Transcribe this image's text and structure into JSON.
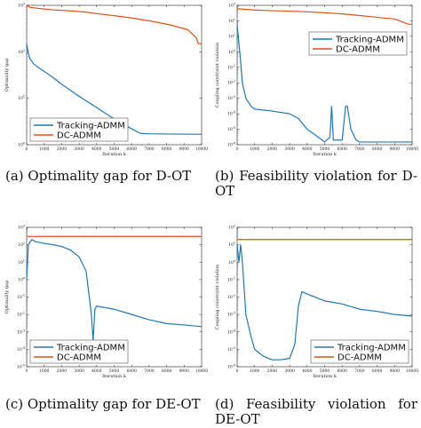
{
  "colors": {
    "tracking": "#1f77b4",
    "dc": "#d95319"
  },
  "figures": [
    {
      "caption": "(a) Optimality gap for D-OT"
    },
    {
      "caption": "(b) Feasibility violation for D-OT"
    },
    {
      "caption": "(c) Optimality gap for DE-OT"
    },
    {
      "caption": "(d) Feasibility violation for DE-OT"
    }
  ],
  "chart_data": [
    {
      "type": "line",
      "xlabel": "Iteration k",
      "ylabel": "Optimality gap",
      "xlim": [
        0,
        10000
      ],
      "xticks": [
        0,
        1000,
        2000,
        3000,
        4000,
        5000,
        6000,
        7000,
        8000,
        9000,
        10000
      ],
      "yscale": "log",
      "ylim": [
        1,
        1000
      ],
      "yticks": [
        "10^0",
        "10^1",
        "10^2",
        "10^3"
      ],
      "legend": "bottom-left",
      "series": [
        {
          "name": "Tracking-ADMM",
          "color": "#1f77b4",
          "x": [
            0,
            100,
            200,
            400,
            700,
            1000,
            1500,
            2000,
            3000,
            4000,
            5000,
            6000,
            6500,
            7000,
            8000,
            10000
          ],
          "y": [
            150,
            90,
            70,
            55,
            45,
            38,
            28,
            20,
            11,
            6.3,
            3.6,
            2.2,
            1.75,
            1.72,
            1.7,
            1.68
          ]
        },
        {
          "name": "DC-ADMM",
          "color": "#d95319",
          "x": [
            0,
            200,
            800,
            1500,
            2500,
            3300,
            4200,
            5300,
            6200,
            7200,
            8200,
            9200,
            9700,
            9800,
            10000
          ],
          "y": [
            1000,
            900,
            850,
            800,
            760,
            720,
            650,
            580,
            520,
            450,
            380,
            300,
            200,
            150,
            150
          ]
        }
      ]
    },
    {
      "type": "line",
      "xlabel": "Iteration k",
      "ylabel": "Coupling constraint violation",
      "xlim": [
        0,
        10000
      ],
      "xticks": [
        0,
        1000,
        2000,
        3000,
        4000,
        5000,
        6000,
        7000,
        8000,
        9000,
        10000
      ],
      "yscale": "log",
      "ylim": [
        1e-06,
        1000
      ],
      "yticks": [
        "10^-6",
        "10^-5",
        "10^-4",
        "10^-3",
        "10^-2",
        "10^-1",
        "10^0",
        "10^1",
        "10^2",
        "10^3"
      ],
      "legend": "top-right",
      "series": [
        {
          "name": "Tracking-ADMM",
          "color": "#1f77b4",
          "x": [
            0,
            150,
            300,
            500,
            800,
            1000,
            2000,
            3000,
            3500,
            4000,
            4500,
            5000,
            5300,
            5400,
            5500,
            6000,
            6200,
            6300,
            6500,
            6800,
            7000,
            10000
          ],
          "y": [
            50,
            1,
            0.01,
            0.001,
            0.0003,
            0.0002,
            0.00015,
            0.0001,
            5e-05,
            1e-05,
            4e-06,
            1.5e-06,
            3e-06,
            0.0003,
            2e-06,
            2e-06,
            0.0003,
            0.0003,
            1e-05,
            2e-06,
            1.5e-06,
            1.5e-06
          ]
        },
        {
          "name": "DC-ADMM",
          "color": "#d95319",
          "x": [
            0,
            1000,
            2000,
            3000,
            4000,
            5000,
            6000,
            7000,
            8000,
            9000,
            9800,
            10000
          ],
          "y": [
            600,
            500,
            450,
            420,
            380,
            330,
            280,
            220,
            170,
            130,
            60,
            60
          ]
        }
      ]
    },
    {
      "type": "line",
      "xlabel": "Iteration k",
      "ylabel": "Optimality gap",
      "xlim": [
        0,
        10000
      ],
      "xticks": [
        0,
        1000,
        2000,
        3000,
        4000,
        5000,
        6000,
        7000,
        8000,
        9000,
        10000
      ],
      "yscale": "log",
      "ylim": [
        1e-05,
        1000
      ],
      "yticks": [
        "10^-5",
        "10^-4",
        "10^-3",
        "10^-2",
        "10^-1",
        "10^0",
        "10^1",
        "10^2",
        "10^3"
      ],
      "legend": "bottom-left",
      "series": [
        {
          "name": "Tracking-ADMM",
          "color": "#1f77b4",
          "x": [
            0,
            100,
            300,
            500,
            1000,
            1500,
            2000,
            2500,
            3000,
            3400,
            3700,
            3800,
            3900,
            4000,
            5000,
            6000,
            7000,
            8000,
            9000,
            10000
          ],
          "y": [
            1,
            100,
            200,
            150,
            120,
            100,
            80,
            50,
            20,
            3,
            0.01,
            0.0003,
            0.02,
            0.03,
            0.02,
            0.01,
            0.005,
            0.003,
            0.0025,
            0.002
          ]
        },
        {
          "name": "DC-ADMM",
          "color": "#d95319",
          "x": [
            0,
            10000
          ],
          "y": [
            300,
            300
          ]
        }
      ]
    },
    {
      "type": "line",
      "xlabel": "Iteration k",
      "ylabel": "Coupling constraint violation",
      "xlim": [
        0,
        10000
      ],
      "xticks": [
        0,
        1000,
        2000,
        3000,
        4000,
        5000,
        6000,
        7000,
        8000,
        9000,
        10000
      ],
      "yscale": "log",
      "ylim": [
        1e-06,
        100
      ],
      "yticks": [
        "10^-6",
        "10^-5",
        "10^-4",
        "10^-3",
        "10^-2",
        "10^-1",
        "10^0",
        "10^1",
        "10^2"
      ],
      "legend": "bottom-right",
      "series": [
        {
          "name": "Tracking-ADMM",
          "color": "#1f77b4",
          "x": [
            0,
            100,
            200,
            300,
            500,
            800,
            1000,
            1500,
            2000,
            2500,
            3000,
            3300,
            3500,
            3700,
            4000,
            5000,
            6000,
            7000,
            8000,
            9000,
            10000
          ],
          "y": [
            10,
            1,
            10,
            1,
            0.001,
            5e-05,
            1e-05,
            4e-06,
            2.5e-06,
            2.5e-06,
            3e-06,
            2e-05,
            0.003,
            0.02,
            0.015,
            0.006,
            0.004,
            0.002,
            0.0015,
            0.001,
            0.0008
          ]
        },
        {
          "name": "DC-ADMM",
          "color": "#d95319",
          "x": [
            0,
            10000
          ],
          "y": [
            20,
            20
          ]
        }
      ]
    }
  ]
}
